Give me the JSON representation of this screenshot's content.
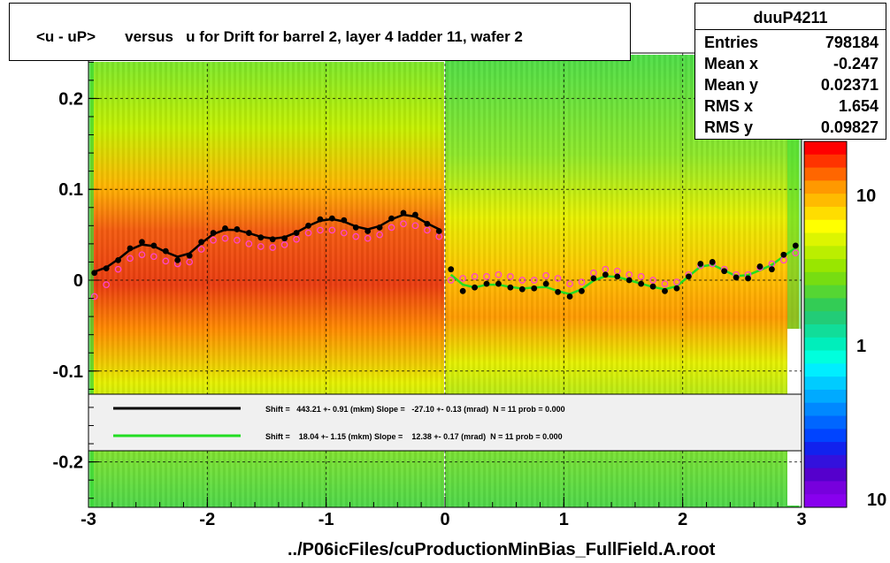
{
  "title": "<u - uP>       versus   u for Drift for barrel 2, layer 4 ladder 11, wafer 2",
  "stats": {
    "name": "duuP4211",
    "rows": [
      {
        "label": "Entries",
        "value": "798184"
      },
      {
        "label": "Mean x",
        "value": "-0.247"
      },
      {
        "label": "Mean y",
        "value": "0.02371"
      },
      {
        "label": "RMS x",
        "value": "1.654"
      },
      {
        "label": "RMS y",
        "value": "0.09827"
      }
    ]
  },
  "legend": {
    "entries": [
      {
        "color": "#000000",
        "text": "Shift =   443.21 +- 0.91 (mkm) Slope =   -27.10 +- 0.13 (mrad)  N = 11 prob = 0.000"
      },
      {
        "color": "#22dd22",
        "text": "Shift =    18.04 +- 1.15 (mkm) Slope =    12.38 +- 0.17 (mrad)  N = 11 prob = 0.000"
      }
    ]
  },
  "footer": "../P06icFiles/cuProductionMinBias_FullField.A.root",
  "colors": {
    "hot": "#e83a10",
    "warm": "#ffb800",
    "mid": "#c8f000",
    "cool": "#38dc38",
    "black_fit": "#000000",
    "green_fit": "#22dd22",
    "magenta_points": "#ff44cc"
  },
  "chart_data": {
    "type": "heatmap",
    "xlim": [
      -3,
      3
    ],
    "ylim": [
      -0.25,
      0.25
    ],
    "x_ticks": [
      "-3",
      "-2",
      "-1",
      "0",
      "1",
      "2",
      "3"
    ],
    "y_ticks": [
      "-0.2",
      "-0.1",
      "0",
      "0.1",
      "0.2"
    ],
    "z_scale": "log",
    "z_ticks": [
      "1",
      "10",
      "10"
    ],
    "grid": true,
    "series": [
      {
        "color": "#000000",
        "x": [
          -2.95,
          -2.85,
          -2.75,
          -2.65,
          -2.55,
          -2.45,
          -2.35,
          -2.25,
          -2.15,
          -2.05,
          -1.95,
          -1.85,
          -1.75,
          -1.65,
          -1.55,
          -1.45,
          -1.35,
          -1.25,
          -1.15,
          -1.05,
          -0.95,
          -0.85,
          -0.75,
          -0.65,
          -0.55,
          -0.45,
          -0.35,
          -0.25,
          -0.15,
          -0.05,
          0.05,
          0.15,
          0.25,
          0.35,
          0.45,
          0.55,
          0.65,
          0.75,
          0.85,
          0.95,
          1.05,
          1.15,
          1.25,
          1.35,
          1.45,
          1.55,
          1.65,
          1.75,
          1.85,
          1.95,
          2.05,
          2.15,
          2.25,
          2.35,
          2.45,
          2.55,
          2.65,
          2.75,
          2.85,
          2.95
        ],
        "y": [
          0.008,
          0.013,
          0.022,
          0.035,
          0.042,
          0.038,
          0.032,
          0.022,
          0.027,
          0.042,
          0.052,
          0.057,
          0.056,
          0.052,
          0.047,
          0.045,
          0.046,
          0.052,
          0.06,
          0.067,
          0.068,
          0.066,
          0.058,
          0.054,
          0.058,
          0.068,
          0.074,
          0.072,
          0.062,
          0.054,
          0.012,
          -0.012,
          -0.008,
          -0.004,
          -0.004,
          -0.008,
          -0.01,
          -0.009,
          -0.004,
          -0.013,
          -0.018,
          -0.012,
          0.002,
          0.006,
          0.004,
          0.0,
          -0.004,
          -0.007,
          -0.012,
          -0.009,
          0.004,
          0.018,
          0.02,
          0.01,
          0.003,
          0.002,
          0.015,
          0.012,
          0.028,
          0.038
        ]
      },
      {
        "color": "#ff44cc",
        "x": [
          -2.95,
          -2.85,
          -2.75,
          -2.65,
          -2.55,
          -2.45,
          -2.35,
          -2.25,
          -2.15,
          -2.05,
          -1.95,
          -1.85,
          -1.75,
          -1.65,
          -1.55,
          -1.45,
          -1.35,
          -1.25,
          -1.15,
          -1.05,
          -0.95,
          -0.85,
          -0.75,
          -0.65,
          -0.55,
          -0.45,
          -0.35,
          -0.25,
          -0.15,
          -0.05,
          0.05,
          0.15,
          0.25,
          0.35,
          0.45,
          0.55,
          0.65,
          0.75,
          0.85,
          0.95,
          1.05,
          1.15,
          1.25,
          1.35,
          1.45,
          1.55,
          1.65,
          1.75,
          1.85,
          1.95,
          2.05,
          2.15,
          2.25,
          2.35,
          2.45,
          2.55,
          2.65,
          2.75,
          2.85,
          2.95
        ],
        "y": [
          -0.018,
          -0.005,
          0.012,
          0.024,
          0.028,
          0.026,
          0.021,
          0.018,
          0.02,
          0.034,
          0.044,
          0.046,
          0.044,
          0.04,
          0.037,
          0.036,
          0.039,
          0.045,
          0.052,
          0.055,
          0.055,
          0.052,
          0.048,
          0.046,
          0.05,
          0.058,
          0.062,
          0.06,
          0.055,
          0.048,
          0.0,
          0.002,
          0.004,
          0.004,
          0.006,
          0.004,
          0.0,
          0.0,
          0.005,
          0.002,
          -0.004,
          -0.002,
          0.008,
          0.012,
          0.01,
          0.006,
          0.004,
          0.0,
          -0.004,
          -0.002,
          0.006,
          0.016,
          0.018,
          0.012,
          0.006,
          0.006,
          0.014,
          0.018,
          0.022,
          0.03
        ]
      }
    ]
  }
}
